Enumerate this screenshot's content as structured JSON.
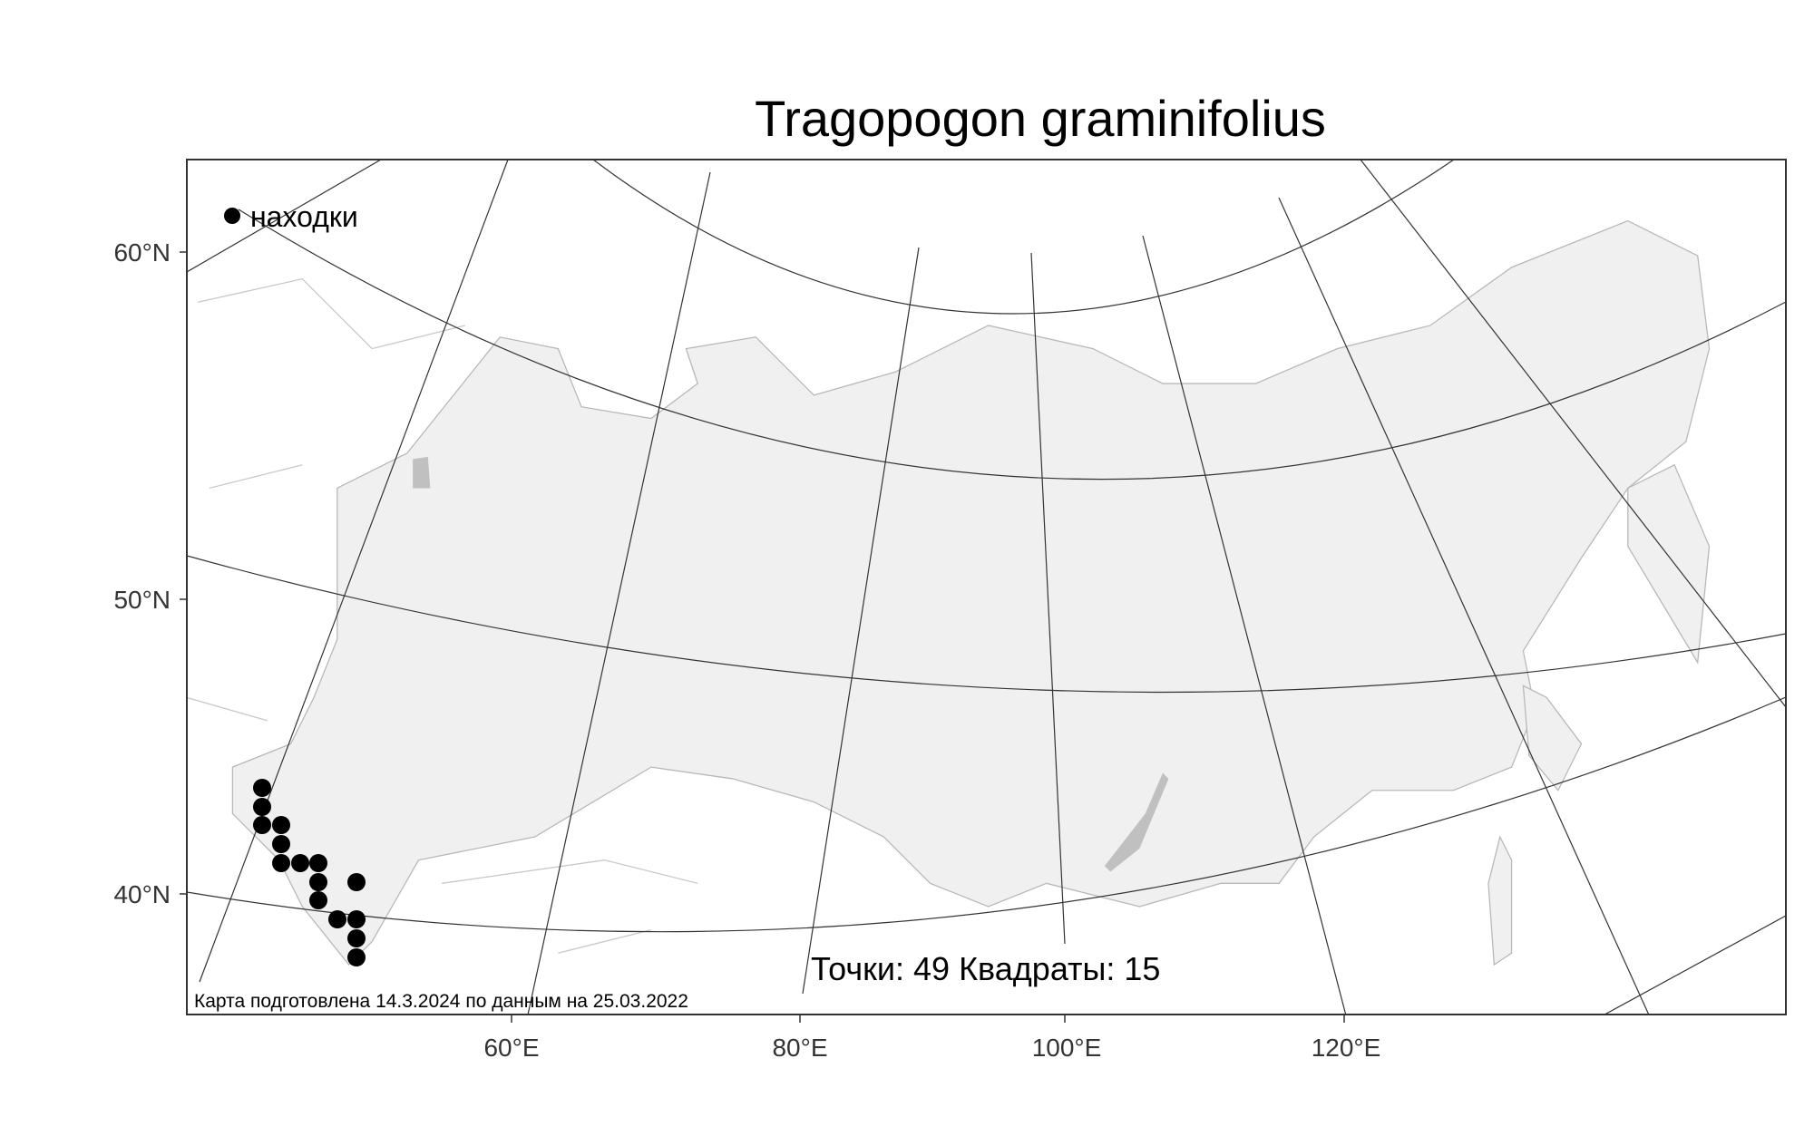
{
  "title": "Tragopogon graminifolius",
  "legend": {
    "label": "находки",
    "marker": "filled-black-circle"
  },
  "stats": "Точки: 49 Квадраты: 15",
  "footer": "Карта подготовлена 14.3.2024 по данным на 25.03.2022",
  "axes": {
    "lat_labels": [
      "60°N",
      "50°N",
      "40°N"
    ],
    "lon_labels": [
      "60°E",
      "80°E",
      "100°E",
      "120°E"
    ]
  },
  "colors": {
    "land": "#f0f0f0",
    "coast": "#b8b8b8",
    "graticule": "#333333",
    "points": "#000000"
  },
  "occurrence_count_shown": 15
}
